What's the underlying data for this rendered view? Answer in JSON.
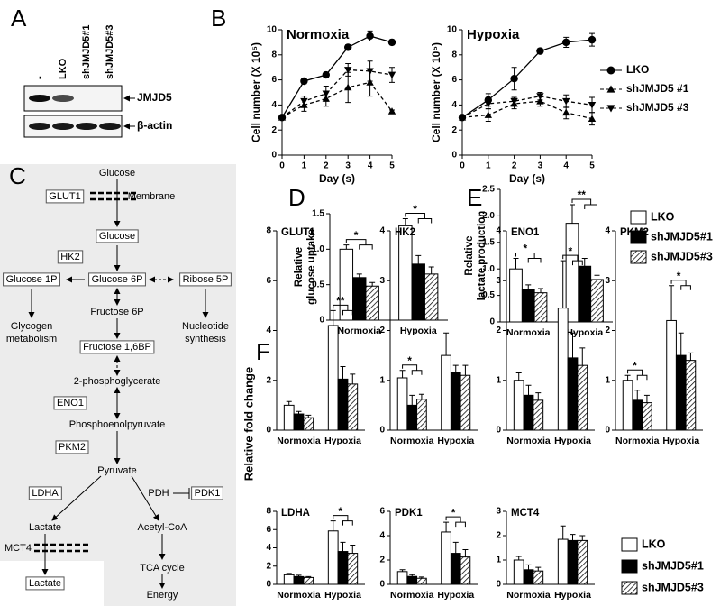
{
  "panel_labels": [
    "A",
    "B",
    "C",
    "D",
    "E",
    "F"
  ],
  "blot": {
    "lanes": [
      "-",
      "LKO",
      "shJMJD5#1",
      "shJMJD5#3"
    ],
    "bands": [
      "JMJD5",
      "β-actin"
    ]
  },
  "pathway": {
    "nodes": [
      {
        "lines": [
          "Glucose"
        ]
      },
      {
        "lines": [
          "GLUT1"
        ],
        "boxed": true
      },
      {
        "lines": [
          "Membrane"
        ]
      },
      {
        "lines": [
          "Glucose"
        ],
        "boxed": true
      },
      {
        "lines": [
          "HK2"
        ],
        "boxed": true
      },
      {
        "lines": [
          "Glucose 6P"
        ],
        "boxed": true
      },
      {
        "lines": [
          "Glucose 1P"
        ],
        "boxed": true
      },
      {
        "lines": [
          "Ribose 5P"
        ],
        "boxed": true
      },
      {
        "lines": [
          "Glycogen",
          "metabolism"
        ]
      },
      {
        "lines": [
          "Nucleotide",
          "synthesis"
        ]
      },
      {
        "lines": [
          "Fructose 6P"
        ]
      },
      {
        "lines": [
          "Fructose 1,6BP"
        ],
        "boxed": true
      },
      {
        "lines": [
          "2-phosphoglycerate"
        ]
      },
      {
        "lines": [
          "ENO1"
        ],
        "boxed": true
      },
      {
        "lines": [
          "Phosphoenolpyruvate"
        ]
      },
      {
        "lines": [
          "PKM2"
        ],
        "boxed": true
      },
      {
        "lines": [
          "Pyruvate"
        ]
      },
      {
        "lines": [
          "LDHA"
        ],
        "boxed": true
      },
      {
        "lines": [
          "PDH"
        ]
      },
      {
        "lines": [
          "PDK1"
        ],
        "boxed": true
      },
      {
        "lines": [
          "Lactate"
        ]
      },
      {
        "lines": [
          "Acetyl-CoA"
        ]
      },
      {
        "lines": [
          "MCT4"
        ]
      },
      {
        "lines": [
          "Lactate"
        ],
        "boxed": true
      },
      {
        "lines": [
          "TCA cycle"
        ]
      },
      {
        "lines": [
          "Energy"
        ]
      }
    ]
  },
  "figure_f": {
    "y_label": "Relative fold change"
  },
  "chart_data": [
    {
      "type": "line",
      "title": "Normoxia",
      "x_label": "Day (s)",
      "y_label": "Cell number (X 10⁵)",
      "x": [
        0,
        1,
        2,
        3,
        4,
        5
      ],
      "xlim": [
        0,
        5
      ],
      "xticks": [
        0,
        1,
        2,
        3,
        4,
        5
      ],
      "ylim": [
        0,
        10
      ],
      "yticks": [
        0,
        2,
        4,
        6,
        8,
        10
      ],
      "series": [
        {
          "name": "LKO",
          "color": "#000000",
          "marker": "circle",
          "dash": false,
          "values": [
            3,
            5.9,
            6.4,
            8.6,
            9.5,
            9.0
          ],
          "errors": [
            0,
            0.2,
            0.2,
            0.2,
            0.4,
            0.2
          ]
        },
        {
          "name": "shJMJD5 #1",
          "color": "#000000",
          "marker": "triangle-up",
          "dash": true,
          "values": [
            3,
            4.0,
            4.5,
            5.4,
            5.8,
            3.5
          ],
          "errors": [
            0,
            0.5,
            0.6,
            1.2,
            1.1,
            0.1
          ]
        },
        {
          "name": "shJMJD5 #3",
          "color": "#000000",
          "marker": "triangle-down",
          "dash": true,
          "values": [
            3,
            4.3,
            4.9,
            6.8,
            6.7,
            6.4
          ],
          "errors": [
            0,
            0.4,
            0.6,
            0.5,
            0.8,
            0.6
          ]
        }
      ]
    },
    {
      "type": "line",
      "title": "Hypoxia",
      "x_label": "Day (s)",
      "y_label": "Cell number (X 10⁵)",
      "legend": "right",
      "x": [
        0,
        1,
        2,
        3,
        4,
        5
      ],
      "xlim": [
        0,
        5
      ],
      "xticks": [
        0,
        1,
        2,
        3,
        4,
        5
      ],
      "ylim": [
        0,
        10
      ],
      "yticks": [
        0,
        2,
        4,
        6,
        8,
        10
      ],
      "series": [
        {
          "name": "LKO",
          "color": "#000000",
          "marker": "circle",
          "dash": false,
          "values": [
            3,
            4.4,
            6.1,
            8.3,
            9.0,
            9.2
          ],
          "errors": [
            0,
            0.5,
            0.9,
            0.2,
            0.4,
            0.5
          ]
        },
        {
          "name": "shJMJD5 #1",
          "color": "#000000",
          "marker": "triangle-up",
          "dash": true,
          "values": [
            3,
            3.2,
            4.1,
            4.3,
            3.4,
            2.9
          ],
          "errors": [
            0,
            0.5,
            0.4,
            0.4,
            0.5,
            0.5
          ]
        },
        {
          "name": "shJMJD5 #3",
          "color": "#000000",
          "marker": "triangle-down",
          "dash": true,
          "values": [
            3,
            4.1,
            4.3,
            4.7,
            4.3,
            4.0
          ],
          "errors": [
            0,
            0.4,
            0.3,
            0.3,
            0.5,
            0.6
          ]
        }
      ]
    },
    {
      "type": "bar",
      "y_label": [
        "Relative",
        "glucose uptake"
      ],
      "categories": [
        "Normoxia",
        "Hypoxia"
      ],
      "ylim": [
        0,
        1.5
      ],
      "yticks": [
        0,
        0.5,
        {
          "value": 1,
          "label": "1.0"
        },
        1.5
      ],
      "series": [
        {
          "name": "LKO",
          "color": "#ffffff",
          "values": [
            1.0,
            1.33
          ],
          "errors": [
            0.06,
            0.1
          ]
        },
        {
          "name": "shJMJD5#1",
          "color": "#000000",
          "values": [
            0.6,
            0.79
          ],
          "errors": [
            0.05,
            0.12
          ]
        },
        {
          "name": "shJMJD5#3",
          "color": "#ffffff",
          "pattern": "hatch",
          "values": [
            0.48,
            0.65
          ],
          "errors": [
            0.05,
            0.1
          ]
        }
      ],
      "annotations": [
        {
          "category": "Normoxia",
          "text": "*"
        },
        {
          "category": "Hypoxia",
          "text": "*"
        }
      ]
    },
    {
      "type": "bar",
      "y_label": [
        "Relative",
        "lactate production"
      ],
      "categories": [
        "Normoxia",
        "Hypoxia"
      ],
      "legend": "right",
      "ylim": [
        0,
        2.5
      ],
      "yticks": [
        0,
        0.5,
        {
          "value": 1,
          "label": "1.0"
        },
        1.5,
        {
          "value": 2,
          "label": "2.0"
        },
        2.5
      ],
      "series": [
        {
          "name": "LKO",
          "color": "#ffffff",
          "values": [
            1.0,
            1.86
          ],
          "errors": [
            0.2,
            0.35
          ]
        },
        {
          "name": "shJMJD5#1",
          "color": "#000000",
          "values": [
            0.62,
            1.05
          ],
          "errors": [
            0.08,
            0.15
          ]
        },
        {
          "name": "shJMJD5#3",
          "color": "#ffffff",
          "pattern": "hatch",
          "values": [
            0.55,
            0.8
          ],
          "errors": [
            0.08,
            0.08
          ]
        }
      ],
      "annotations": [
        {
          "category": "Normoxia",
          "text": "*"
        },
        {
          "category": "Hypoxia",
          "text": "**"
        }
      ]
    },
    {
      "type": "bar",
      "title": "GLUT1",
      "categories": [
        "Normoxia",
        "Hypoxia"
      ],
      "ylim": [
        0,
        8
      ],
      "yticks": [
        0,
        2,
        4,
        6,
        8
      ],
      "series": [
        {
          "name": "LKO",
          "color": "#ffffff",
          "values": [
            1.0,
            4.2
          ],
          "errors": [
            0.15,
            0.6
          ]
        },
        {
          "name": "shJMJD5#1",
          "color": "#000000",
          "values": [
            0.65,
            2.05
          ],
          "errors": [
            0.1,
            0.5
          ]
        },
        {
          "name": "shJMJD5#3",
          "color": "#ffffff",
          "pattern": "hatch",
          "values": [
            0.5,
            1.85
          ],
          "errors": [
            0.1,
            0.4
          ]
        }
      ],
      "annotations": [
        {
          "category": "Hypoxia",
          "text": "**"
        }
      ]
    },
    {
      "type": "bar",
      "title": "HK2",
      "categories": [
        "Normoxia",
        "Hypoxia"
      ],
      "ylim": [
        0,
        4
      ],
      "yticks": [
        0,
        1,
        2,
        3,
        4
      ],
      "series": [
        {
          "name": "LKO",
          "color": "#ffffff",
          "values": [
            1.05,
            1.5
          ],
          "errors": [
            0.15,
            0.45
          ]
        },
        {
          "name": "shJMJD5#1",
          "color": "#000000",
          "values": [
            0.5,
            1.15
          ],
          "errors": [
            0.2,
            0.15
          ]
        },
        {
          "name": "shJMJD5#3",
          "color": "#ffffff",
          "pattern": "hatch",
          "values": [
            0.62,
            1.1
          ],
          "errors": [
            0.1,
            0.2
          ]
        }
      ],
      "annotations": [
        {
          "category": "Normoxia",
          "text": "*"
        }
      ]
    },
    {
      "type": "bar",
      "title": "ENO1",
      "categories": [
        "Normoxia",
        "Hypoxia"
      ],
      "ylim": [
        0,
        4
      ],
      "yticks": [
        0,
        1,
        2,
        3,
        4
      ],
      "series": [
        {
          "name": "LKO",
          "color": "#ffffff",
          "values": [
            1.0,
            2.45
          ],
          "errors": [
            0.15,
            0.95
          ]
        },
        {
          "name": "shJMJD5#1",
          "color": "#000000",
          "values": [
            0.7,
            1.45
          ],
          "errors": [
            0.2,
            0.5
          ]
        },
        {
          "name": "shJMJD5#3",
          "color": "#ffffff",
          "pattern": "hatch",
          "values": [
            0.6,
            1.3
          ],
          "errors": [
            0.15,
            0.35
          ]
        }
      ],
      "annotations": [
        {
          "category": "Hypoxia",
          "text": "*"
        }
      ]
    },
    {
      "type": "bar",
      "title": "PKM2",
      "categories": [
        "Normoxia",
        "Hypoxia"
      ],
      "ylim": [
        0,
        4
      ],
      "yticks": [
        0,
        1,
        2,
        3,
        4
      ],
      "series": [
        {
          "name": "LKO",
          "color": "#ffffff",
          "values": [
            1.0,
            2.2
          ],
          "errors": [
            0.1,
            0.7
          ]
        },
        {
          "name": "shJMJD5#1",
          "color": "#000000",
          "values": [
            0.6,
            1.5
          ],
          "errors": [
            0.2,
            0.45
          ]
        },
        {
          "name": "shJMJD5#3",
          "color": "#ffffff",
          "pattern": "hatch",
          "values": [
            0.55,
            1.4
          ],
          "errors": [
            0.15,
            0.15
          ]
        }
      ],
      "annotations": [
        {
          "category": "Normoxia",
          "text": "*"
        },
        {
          "category": "Hypoxia",
          "text": "*"
        }
      ]
    },
    {
      "type": "bar",
      "title": "LDHA",
      "categories": [
        "Normoxia",
        "Hypoxia"
      ],
      "ylim": [
        0,
        8
      ],
      "yticks": [
        0,
        2,
        4,
        6,
        8
      ],
      "series": [
        {
          "name": "LKO",
          "color": "#ffffff",
          "values": [
            1.05,
            5.85
          ],
          "errors": [
            0.15,
            1.1
          ]
        },
        {
          "name": "shJMJD5#1",
          "color": "#000000",
          "values": [
            0.85,
            3.6
          ],
          "errors": [
            0.15,
            1.0
          ]
        },
        {
          "name": "shJMJD5#3",
          "color": "#ffffff",
          "pattern": "hatch",
          "values": [
            0.75,
            3.4
          ],
          "errors": [
            0.1,
            0.9
          ]
        }
      ],
      "annotations": [
        {
          "category": "Hypoxia",
          "text": "*"
        }
      ]
    },
    {
      "type": "bar",
      "title": "PDK1",
      "categories": [
        "Normoxia",
        "Hypoxia"
      ],
      "ylim": [
        0,
        6
      ],
      "yticks": [
        0,
        2,
        4,
        6
      ],
      "series": [
        {
          "name": "LKO",
          "color": "#ffffff",
          "values": [
            1.05,
            4.3
          ],
          "errors": [
            0.15,
            0.8
          ]
        },
        {
          "name": "shJMJD5#1",
          "color": "#000000",
          "values": [
            0.65,
            2.55
          ],
          "errors": [
            0.15,
            0.9
          ]
        },
        {
          "name": "shJMJD5#3",
          "color": "#ffffff",
          "pattern": "hatch",
          "values": [
            0.5,
            2.25
          ],
          "errors": [
            0.1,
            0.6
          ]
        }
      ],
      "annotations": [
        {
          "category": "Hypoxia",
          "text": "*"
        }
      ]
    },
    {
      "type": "bar",
      "title": "MCT4",
      "categories": [
        "Normoxia",
        "Hypoxia"
      ],
      "ylim": [
        0,
        3
      ],
      "yticks": [
        0,
        1,
        2,
        3
      ],
      "legend": "right",
      "series": [
        {
          "name": "LKO",
          "color": "#ffffff",
          "values": [
            1.0,
            1.85
          ],
          "errors": [
            0.15,
            0.55
          ]
        },
        {
          "name": "shJMJD5#1",
          "color": "#000000",
          "values": [
            0.6,
            1.8
          ],
          "errors": [
            0.2,
            0.25
          ]
        },
        {
          "name": "shJMJD5#3",
          "color": "#ffffff",
          "pattern": "hatch",
          "values": [
            0.55,
            1.8
          ],
          "errors": [
            0.15,
            0.2
          ]
        }
      ]
    }
  ]
}
